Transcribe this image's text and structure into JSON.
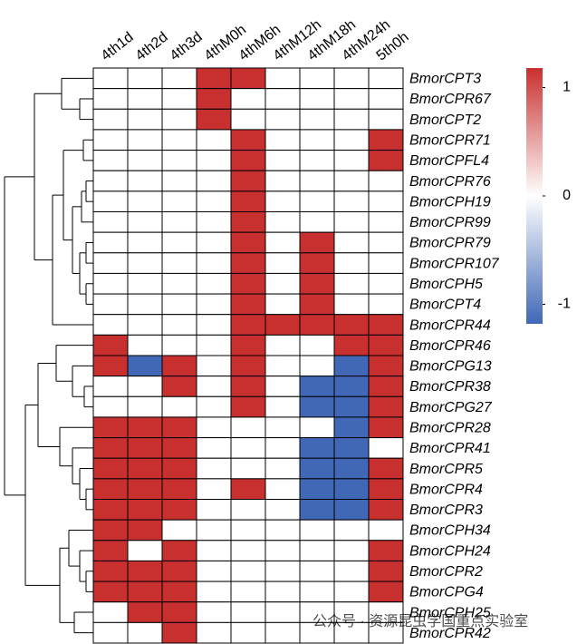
{
  "chart_data": {
    "type": "heatmap",
    "columns": [
      "4th1d",
      "4th2d",
      "4th3d",
      "4thM0h",
      "4thM6h",
      "4thM12h",
      "4thM18h",
      "4thM24h",
      "5th0h"
    ],
    "rows": [
      "BmorCPT3",
      "BmorCPR67",
      "BmorCPT2",
      "BmorCPR71",
      "BmorCPFL4",
      "BmorCPR76",
      "BmorCPH19",
      "BmorCPR99",
      "BmorCPR79",
      "BmorCPR107",
      "BmorCPH5",
      "BmorCPT4",
      "BmorCPR44",
      "BmorCPR46",
      "BmorCPG13",
      "BmorCPR38",
      "BmorCPG27",
      "BmorCPR28",
      "BmorCPR41",
      "BmorCPR5",
      "BmorCPR4",
      "BmorCPR3",
      "BmorCPH34",
      "BmorCPH24",
      "BmorCPR2",
      "BmorCPG4",
      "BmorCPH25",
      "BmorCPR42"
    ],
    "values": [
      [
        0,
        0,
        0,
        1,
        1,
        0,
        0,
        0,
        0
      ],
      [
        0,
        0,
        0,
        1,
        0,
        0,
        0,
        0,
        0
      ],
      [
        0,
        0,
        0,
        1,
        0,
        0,
        0,
        0,
        0
      ],
      [
        0,
        0,
        0,
        0,
        1,
        0,
        0,
        0,
        1
      ],
      [
        0,
        0,
        0,
        0,
        1,
        0,
        0,
        0,
        1
      ],
      [
        0,
        0,
        0,
        0,
        1,
        0,
        0,
        0,
        0
      ],
      [
        0,
        0,
        0,
        0,
        1,
        0,
        0,
        0,
        0
      ],
      [
        0,
        0,
        0,
        0,
        1,
        0,
        0,
        0,
        0
      ],
      [
        0,
        0,
        0,
        0,
        1,
        0,
        1,
        0,
        0
      ],
      [
        0,
        0,
        0,
        0,
        1,
        0,
        1,
        0,
        0
      ],
      [
        0,
        0,
        0,
        0,
        1,
        0,
        1,
        0,
        0
      ],
      [
        0,
        0,
        0,
        0,
        1,
        0,
        1,
        0,
        0
      ],
      [
        0,
        0,
        0,
        0,
        1,
        1,
        1,
        1,
        1
      ],
      [
        1,
        0,
        0,
        0,
        1,
        0,
        0,
        1,
        1
      ],
      [
        1,
        -1,
        1,
        0,
        1,
        0,
        0,
        -1,
        1
      ],
      [
        0,
        0,
        1,
        0,
        1,
        0,
        -1,
        -1,
        1
      ],
      [
        0,
        0,
        0,
        0,
        1,
        0,
        -1,
        -1,
        1
      ],
      [
        1,
        1,
        1,
        0,
        0,
        0,
        0,
        -1,
        1
      ],
      [
        1,
        1,
        1,
        0,
        0,
        0,
        -1,
        -1,
        0
      ],
      [
        1,
        1,
        1,
        0,
        0,
        0,
        -1,
        -1,
        1
      ],
      [
        1,
        1,
        1,
        0,
        1,
        0,
        -1,
        -1,
        1
      ],
      [
        1,
        1,
        1,
        0,
        0,
        0,
        -1,
        -1,
        1
      ],
      [
        1,
        1,
        0,
        0,
        0,
        0,
        0,
        0,
        0
      ],
      [
        1,
        0,
        1,
        0,
        0,
        0,
        0,
        0,
        1
      ],
      [
        1,
        1,
        1,
        0,
        0,
        0,
        0,
        0,
        1
      ],
      [
        1,
        1,
        1,
        0,
        0,
        0,
        0,
        0,
        1
      ],
      [
        0,
        1,
        1,
        0,
        0,
        0,
        0,
        0,
        0
      ],
      [
        0,
        0,
        1,
        0,
        0,
        0,
        0,
        0,
        0
      ]
    ],
    "colors": {
      "high": "#c8302f",
      "mid": "#ffffff",
      "low": "#4068b6"
    },
    "clim": [
      -1.18,
      1.18
    ],
    "cticks": [
      1,
      0,
      -1
    ],
    "watermark": "公众号 · 资源昆虫学国重点实验室"
  }
}
